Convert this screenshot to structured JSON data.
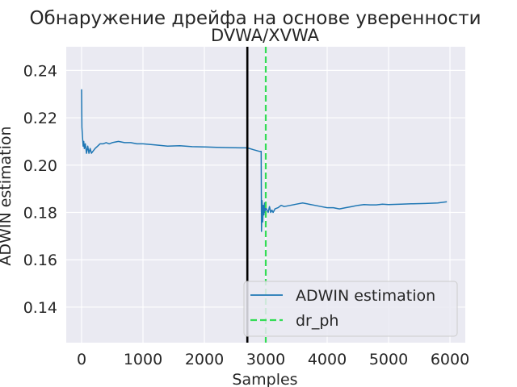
{
  "chart_data": {
    "type": "line",
    "title": "Обнаружение дрейфа на основе уверенности",
    "subtitle": "DVWA/XVWA",
    "xlabel": "Samples",
    "ylabel": "ADWIN estimation",
    "xlim": [
      -250,
      6250
    ],
    "ylim": [
      0.125,
      0.25
    ],
    "xticks": [
      0,
      1000,
      2000,
      3000,
      4000,
      5000,
      6000
    ],
    "xtick_labels": [
      "0",
      "1000",
      "2000",
      "3000",
      "4000",
      "5000",
      "6000"
    ],
    "yticks": [
      0.14,
      0.16,
      0.18,
      0.2,
      0.22,
      0.24
    ],
    "ytick_labels": [
      "0.14",
      "0.16",
      "0.18",
      "0.20",
      "0.22",
      "0.24"
    ],
    "grid": true,
    "legend_position": "lower-right",
    "series": [
      {
        "name": "ADWIN estimation",
        "color": "#1f77b4",
        "x": [
          0,
          5,
          15,
          25,
          35,
          45,
          60,
          80,
          100,
          120,
          140,
          160,
          190,
          220,
          260,
          300,
          350,
          400,
          450,
          500,
          600,
          700,
          800,
          900,
          1000,
          1200,
          1400,
          1600,
          1800,
          2000,
          2200,
          2400,
          2600,
          2700,
          2800,
          2900,
          2925,
          2930,
          2940,
          2950,
          2960,
          2970,
          2980,
          2990,
          3000,
          3020,
          3040,
          3060,
          3080,
          3100,
          3120,
          3150,
          3200,
          3250,
          3300,
          3400,
          3500,
          3600,
          3700,
          3800,
          3900,
          4000,
          4100,
          4200,
          4300,
          4400,
          4500,
          4600,
          4700,
          4800,
          4900,
          5000,
          5200,
          5400,
          5600,
          5800,
          5950
        ],
        "y": [
          0.232,
          0.216,
          0.212,
          0.208,
          0.21,
          0.207,
          0.209,
          0.205,
          0.208,
          0.205,
          0.207,
          0.205,
          0.206,
          0.207,
          0.208,
          0.209,
          0.209,
          0.2095,
          0.209,
          0.2095,
          0.21,
          0.2095,
          0.2095,
          0.209,
          0.209,
          0.2085,
          0.208,
          0.2082,
          0.2078,
          0.2077,
          0.2075,
          0.2074,
          0.2073,
          0.2073,
          0.2065,
          0.2058,
          0.2058,
          0.172,
          0.185,
          0.176,
          0.183,
          0.179,
          0.184,
          0.18,
          0.182,
          0.181,
          0.18,
          0.1825,
          0.18,
          0.181,
          0.18,
          0.1815,
          0.182,
          0.183,
          0.1825,
          0.183,
          0.1835,
          0.184,
          0.1835,
          0.183,
          0.1825,
          0.182,
          0.182,
          0.1815,
          0.182,
          0.1825,
          0.183,
          0.1833,
          0.1832,
          0.1832,
          0.1835,
          0.1833,
          0.1835,
          0.1837,
          0.1838,
          0.184,
          0.1845
        ]
      }
    ],
    "vlines": [
      {
        "x": 2700,
        "color": "#000000",
        "style": "solid"
      },
      {
        "x": 3000,
        "name": "dr_ph",
        "color": "#33dd55",
        "style": "dashed"
      }
    ],
    "style": {
      "plot_bg": "#eaeaf2",
      "grid_color": "#ffffff",
      "text_color": "#262626"
    }
  }
}
